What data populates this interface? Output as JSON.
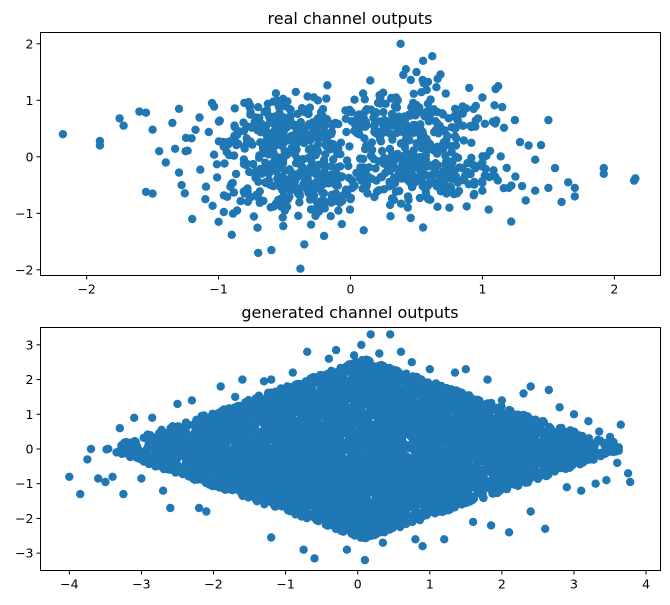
{
  "colors": {
    "marker": "#1f77b4",
    "background": "#ffffff",
    "axes": "#000000"
  },
  "chart_data": [
    {
      "type": "scatter",
      "title": "real channel outputs",
      "xlabel": "",
      "ylabel": "",
      "xlim": [
        -2.35,
        2.35
      ],
      "ylim": [
        -2.1,
        2.2
      ],
      "xticks": [
        -2,
        -1,
        0,
        1,
        2
      ],
      "yticks": [
        -2,
        -1,
        0,
        1,
        2
      ],
      "grid": false,
      "marker_color": "#1f77b4",
      "clusters": [
        {
          "center": [
            -0.55,
            0.45
          ],
          "spread": [
            0.3,
            0.28
          ],
          "count": 230
        },
        {
          "center": [
            -0.45,
            -0.45
          ],
          "spread": [
            0.28,
            0.33
          ],
          "count": 230
        },
        {
          "center": [
            0.45,
            0.55
          ],
          "spread": [
            0.28,
            0.35
          ],
          "count": 230
        },
        {
          "center": [
            0.55,
            -0.3
          ],
          "spread": [
            0.33,
            0.28
          ],
          "count": 230
        }
      ],
      "points": [
        [
          -2.18,
          0.4
        ],
        [
          -1.9,
          0.2
        ],
        [
          -1.9,
          0.28
        ],
        [
          -1.75,
          0.68
        ],
        [
          -1.72,
          0.55
        ],
        [
          -1.6,
          0.8
        ],
        [
          -1.55,
          0.78
        ],
        [
          -1.5,
          0.48
        ],
        [
          -1.5,
          -0.65
        ],
        [
          -1.45,
          0.1
        ],
        [
          -1.4,
          -0.1
        ],
        [
          -1.35,
          0.6
        ],
        [
          -1.3,
          0.85
        ],
        [
          -1.3,
          -0.28
        ],
        [
          -1.28,
          -0.5
        ],
        [
          -1.25,
          0.1
        ],
        [
          -1.2,
          -1.1
        ],
        [
          -1.1,
          -0.75
        ],
        [
          -1.05,
          0.95
        ],
        [
          -1.0,
          -1.15
        ],
        [
          -0.9,
          -1.38
        ],
        [
          -0.7,
          -1.7
        ],
        [
          -0.6,
          -1.65
        ],
        [
          -0.38,
          -1.98
        ],
        [
          -0.35,
          -1.55
        ],
        [
          -0.2,
          -1.4
        ],
        [
          -0.15,
          -1.05
        ],
        [
          0.0,
          -0.75
        ],
        [
          0.1,
          -1.3
        ],
        [
          0.3,
          -0.85
        ],
        [
          0.38,
          2.0
        ],
        [
          0.4,
          1.45
        ],
        [
          0.42,
          1.55
        ],
        [
          0.5,
          1.5
        ],
        [
          0.55,
          1.7
        ],
        [
          0.62,
          1.78
        ],
        [
          0.66,
          1.38
        ],
        [
          0.55,
          -1.25
        ],
        [
          0.75,
          -0.9
        ],
        [
          0.9,
          1.22
        ],
        [
          0.95,
          0.9
        ],
        [
          1.0,
          1.05
        ],
        [
          1.0,
          -0.6
        ],
        [
          1.1,
          1.2
        ],
        [
          1.12,
          1.25
        ],
        [
          1.15,
          0.88
        ],
        [
          1.2,
          -0.55
        ],
        [
          1.25,
          -0.35
        ],
        [
          1.35,
          0.2
        ],
        [
          1.4,
          -0.6
        ],
        [
          1.4,
          -0.05
        ],
        [
          1.5,
          0.65
        ],
        [
          1.5,
          -0.55
        ],
        [
          1.55,
          -0.2
        ],
        [
          1.6,
          -0.8
        ],
        [
          1.65,
          -0.45
        ],
        [
          1.7,
          -0.55
        ],
        [
          1.7,
          -0.7
        ],
        [
          1.92,
          -0.2
        ],
        [
          1.92,
          -0.3
        ],
        [
          2.15,
          -0.42
        ],
        [
          2.16,
          -0.38
        ],
        [
          0.15,
          1.35
        ],
        [
          0.8,
          0.2
        ],
        [
          0.85,
          -0.2
        ],
        [
          0.12,
          0.2
        ],
        [
          0.05,
          0.42
        ],
        [
          -0.1,
          0.05
        ],
        [
          -1.55,
          -0.62
        ],
        [
          1.0,
          -0.1
        ]
      ]
    },
    {
      "type": "scatter",
      "title": "generated channel outputs",
      "xlabel": "",
      "ylabel": "",
      "xlim": [
        -4.4,
        4.2
      ],
      "ylim": [
        -3.5,
        3.5
      ],
      "xticks": [
        -4,
        -3,
        -2,
        -1,
        0,
        1,
        2,
        3,
        4
      ],
      "yticks": [
        -3,
        -2,
        -1,
        0,
        1,
        2,
        3
      ],
      "grid": false,
      "marker_color": "#1f77b4",
      "dense_region": {
        "shape": "diamond",
        "center": [
          0.1,
          0
        ],
        "x_half_width": 3.6,
        "y_half_height": 2.6,
        "count": 5200
      },
      "points": [
        [
          -4.0,
          -0.8
        ],
        [
          -3.85,
          -1.3
        ],
        [
          -3.75,
          -0.3
        ],
        [
          -3.7,
          0.0
        ],
        [
          -3.6,
          -0.85
        ],
        [
          -3.5,
          -0.95
        ],
        [
          -3.4,
          -0.8
        ],
        [
          -3.3,
          0.6
        ],
        [
          -3.25,
          -1.3
        ],
        [
          -3.1,
          0.9
        ],
        [
          -3.0,
          -0.85
        ],
        [
          -2.85,
          0.9
        ],
        [
          -2.7,
          -1.2
        ],
        [
          -2.6,
          -1.7
        ],
        [
          -2.5,
          1.3
        ],
        [
          -2.3,
          1.4
        ],
        [
          -2.2,
          -1.7
        ],
        [
          -2.1,
          -1.8
        ],
        [
          -1.9,
          1.8
        ],
        [
          -1.7,
          1.5
        ],
        [
          -1.6,
          2.0
        ],
        [
          -1.3,
          1.95
        ],
        [
          -1.2,
          2.0
        ],
        [
          -1.2,
          -2.55
        ],
        [
          -0.9,
          2.2
        ],
        [
          -0.75,
          -2.9
        ],
        [
          -0.7,
          2.8
        ],
        [
          -0.6,
          -3.15
        ],
        [
          -0.4,
          2.6
        ],
        [
          -0.3,
          2.85
        ],
        [
          -0.15,
          -2.9
        ],
        [
          -0.05,
          2.7
        ],
        [
          0.05,
          3.0
        ],
        [
          0.1,
          -3.2
        ],
        [
          0.18,
          3.3
        ],
        [
          0.35,
          -2.7
        ],
        [
          0.3,
          2.75
        ],
        [
          0.45,
          3.3
        ],
        [
          0.6,
          2.8
        ],
        [
          0.75,
          2.5
        ],
        [
          0.8,
          -2.6
        ],
        [
          0.9,
          -2.8
        ],
        [
          1.0,
          2.3
        ],
        [
          1.2,
          -2.6
        ],
        [
          1.35,
          2.2
        ],
        [
          1.5,
          2.3
        ],
        [
          1.6,
          -2.1
        ],
        [
          1.8,
          2.0
        ],
        [
          1.85,
          -2.2
        ],
        [
          2.0,
          1.4
        ],
        [
          2.1,
          -2.4
        ],
        [
          2.3,
          1.6
        ],
        [
          2.4,
          1.8
        ],
        [
          2.4,
          -1.8
        ],
        [
          2.6,
          -2.3
        ],
        [
          2.65,
          1.7
        ],
        [
          2.8,
          1.2
        ],
        [
          2.9,
          -1.1
        ],
        [
          3.0,
          1.0
        ],
        [
          3.1,
          -1.2
        ],
        [
          3.2,
          0.8
        ],
        [
          3.3,
          -1.0
        ],
        [
          3.35,
          0.5
        ],
        [
          3.45,
          -0.9
        ],
        [
          3.55,
          0.2
        ],
        [
          3.6,
          -0.4
        ],
        [
          3.65,
          0.7
        ],
        [
          3.75,
          -0.7
        ],
        [
          3.78,
          -0.95
        ],
        [
          3.5,
          0.35
        ]
      ]
    }
  ]
}
